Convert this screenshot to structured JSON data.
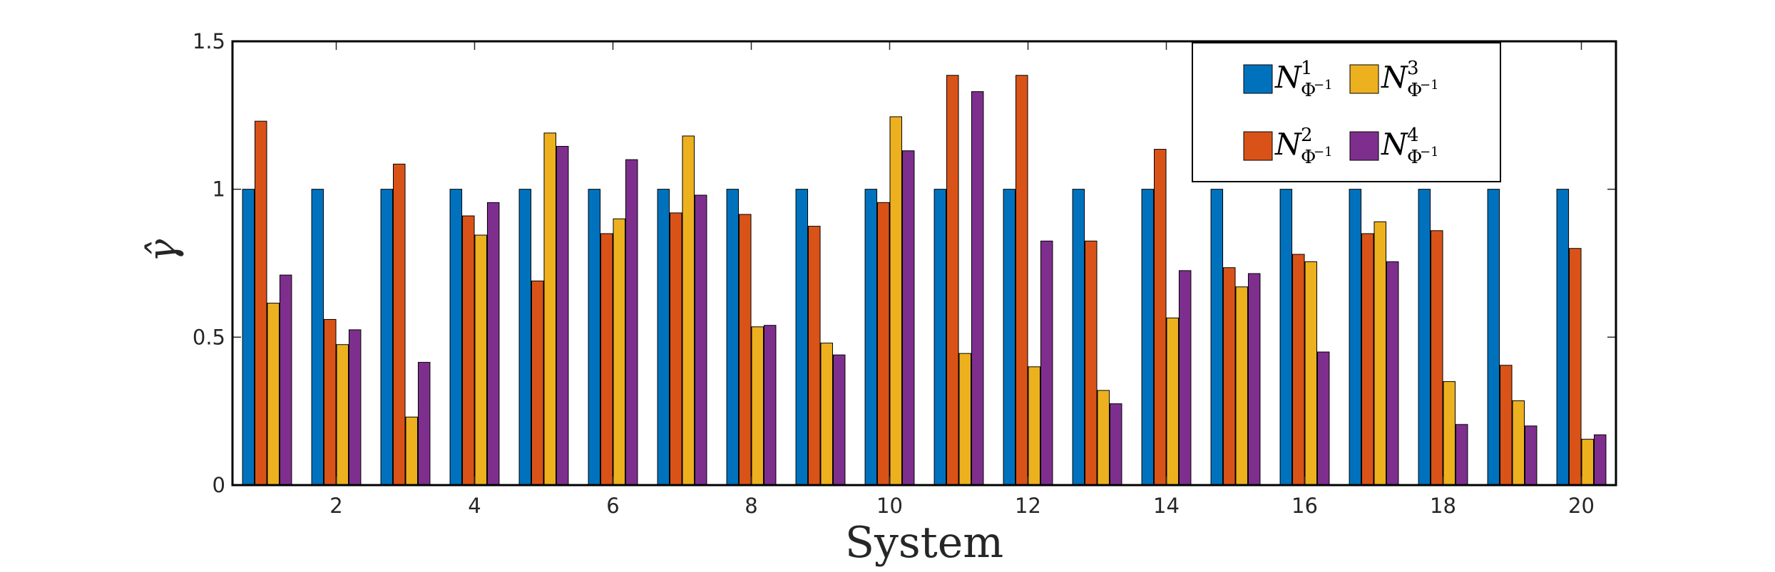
{
  "chart_data": {
    "type": "bar",
    "xlabel": "System",
    "ylabel": "γ̂",
    "ylim": [
      0,
      1.5
    ],
    "xlim": [
      0.5,
      20.5
    ],
    "yticks": [
      "0",
      "0.5",
      "1",
      "1.5"
    ],
    "xticks": [
      "2",
      "4",
      "6",
      "8",
      "10",
      "12",
      "14",
      "16",
      "18",
      "20"
    ],
    "x_tick_values": [
      2,
      4,
      6,
      8,
      10,
      12,
      14,
      16,
      18,
      20
    ],
    "y_tick_values": [
      0,
      0.5,
      1,
      1.5
    ],
    "categories": [
      1,
      2,
      3,
      4,
      5,
      6,
      7,
      8,
      9,
      10,
      11,
      12,
      13,
      14,
      15,
      16,
      17,
      18,
      19,
      20
    ],
    "legend_placement": "top-right",
    "grid": false,
    "series": [
      {
        "name": "N_{Φ^{-1}}^1",
        "base": "N",
        "sub": "Φ",
        "subsup": "−1",
        "sup": "1",
        "color": "#0072BD",
        "values": [
          1,
          1,
          1,
          1,
          1,
          1,
          1,
          1,
          1,
          1,
          1,
          1,
          1,
          1,
          1,
          1,
          1,
          1,
          1,
          1
        ]
      },
      {
        "name": "N_{Φ^{-1}}^2",
        "base": "N",
        "sub": "Φ",
        "subsup": "−1",
        "sup": "2",
        "color": "#D95319",
        "values": [
          1.23,
          0.56,
          1.085,
          0.91,
          0.69,
          0.85,
          0.92,
          0.915,
          0.875,
          0.955,
          1.385,
          1.385,
          0.825,
          1.135,
          0.735,
          0.78,
          0.85,
          0.86,
          0.405,
          0.8
        ]
      },
      {
        "name": "N_{Φ^{-1}}^3",
        "base": "N",
        "sub": "Φ",
        "subsup": "−1",
        "sup": "3",
        "color": "#EDB120",
        "values": [
          0.615,
          0.475,
          0.23,
          0.845,
          1.19,
          0.9,
          1.18,
          0.535,
          0.48,
          1.245,
          0.445,
          0.4,
          0.32,
          0.565,
          0.67,
          0.755,
          0.89,
          0.35,
          0.285,
          0.155
        ]
      },
      {
        "name": "N_{Φ^{-1}}^4",
        "base": "N",
        "sub": "Φ",
        "subsup": "−1",
        "sup": "4",
        "color": "#7E2F8E",
        "values": [
          0.71,
          0.525,
          0.415,
          0.955,
          1.145,
          1.1,
          0.98,
          0.54,
          0.44,
          1.13,
          1.33,
          0.825,
          0.275,
          0.725,
          0.715,
          0.45,
          0.755,
          0.205,
          0.2,
          0.17
        ]
      }
    ]
  }
}
